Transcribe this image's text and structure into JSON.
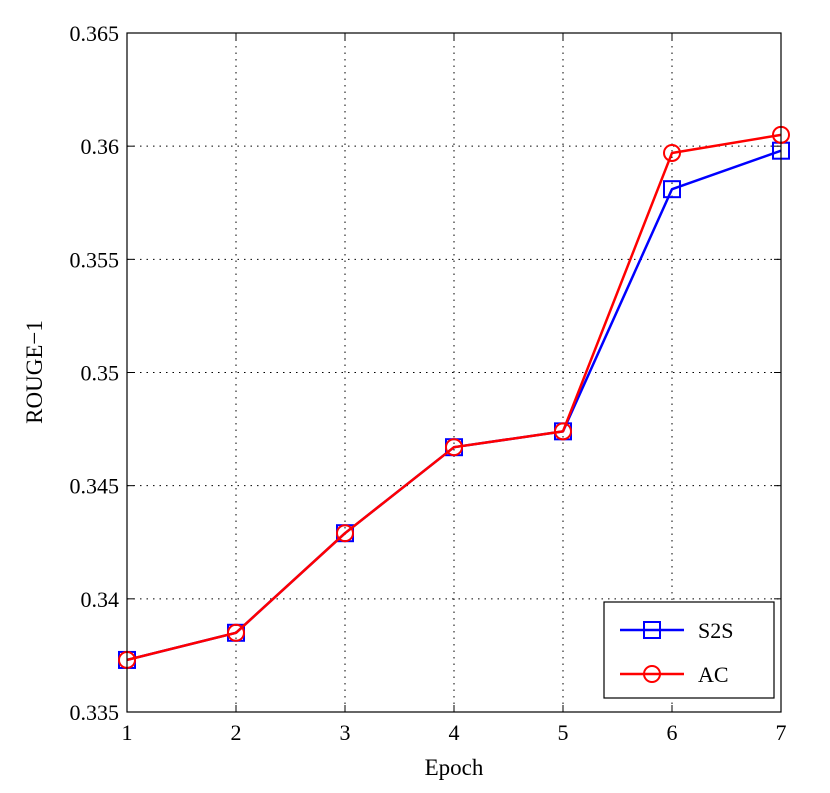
{
  "chart_data": {
    "type": "line",
    "title": "",
    "xlabel": "Epoch",
    "ylabel": "ROUGE−1",
    "x": [
      1,
      2,
      3,
      4,
      5,
      6,
      7
    ],
    "xlim": [
      1,
      7
    ],
    "ylim": [
      0.335,
      0.365
    ],
    "xticks": [
      "1",
      "2",
      "3",
      "4",
      "5",
      "6",
      "7"
    ],
    "yticks": [
      "0.335",
      "0.34",
      "0.345",
      "0.35",
      "0.355",
      "0.36",
      "0.365"
    ],
    "grid": true,
    "legend_position": "bottom-right",
    "series": [
      {
        "name": "S2S",
        "color": "#0000ff",
        "marker": "square",
        "values": [
          0.3373,
          0.3385,
          0.3429,
          0.3467,
          0.3474,
          0.3581,
          0.3598
        ]
      },
      {
        "name": "AC",
        "color": "#ff0000",
        "marker": "circle",
        "values": [
          0.3373,
          0.3385,
          0.3429,
          0.3467,
          0.3474,
          0.3597,
          0.3605
        ]
      }
    ]
  }
}
